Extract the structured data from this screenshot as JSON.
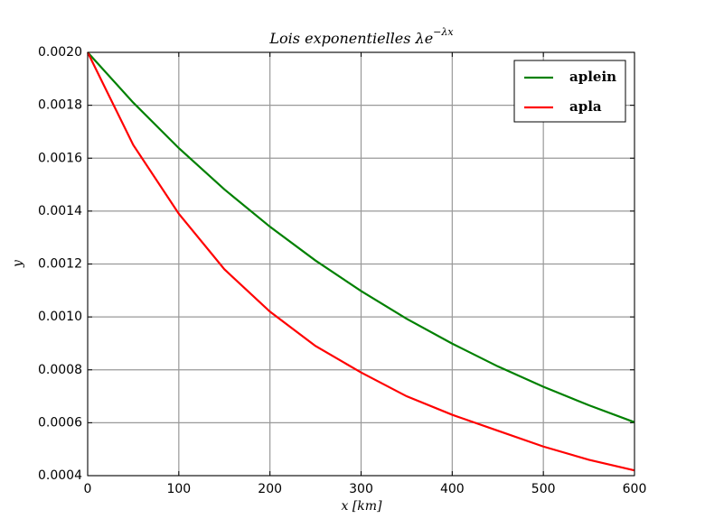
{
  "chart_data": {
    "type": "line",
    "title": "Lois exponentielles λe",
    "title_exponent": "−λx",
    "x_label": "x [km]",
    "y_label": "y",
    "x": [
      0,
      50,
      100,
      150,
      200,
      250,
      300,
      350,
      400,
      450,
      500,
      550,
      600
    ],
    "series": [
      {
        "name": "aplein",
        "color": "#008000",
        "values": [
          0.002,
          0.00181,
          0.001638,
          0.001482,
          0.001341,
          0.001213,
          0.001098,
          0.000993,
          0.000899,
          0.000813,
          0.000736,
          0.000666,
          0.000602
        ]
      },
      {
        "name": "apla",
        "color": "#ff0000",
        "values": [
          0.002,
          0.00165,
          0.00139,
          0.00118,
          0.00102,
          0.00089,
          0.00079,
          0.0007,
          0.00063,
          0.00057,
          0.00051,
          0.00046,
          0.00042
        ]
      }
    ],
    "xlim": [
      0,
      600
    ],
    "xticks": [
      0,
      100,
      200,
      300,
      400,
      500,
      600
    ],
    "ylim": [
      0.0004,
      0.002
    ],
    "yticks": [
      0.0004,
      0.0006,
      0.0008,
      {
        "value": 0.001,
        "label": "0.0010"
      },
      0.0012,
      0.0014,
      0.0016,
      0.0018,
      {
        "value": 0.002,
        "label": "0.0020"
      }
    ],
    "grid": true,
    "legend": "upper right"
  }
}
